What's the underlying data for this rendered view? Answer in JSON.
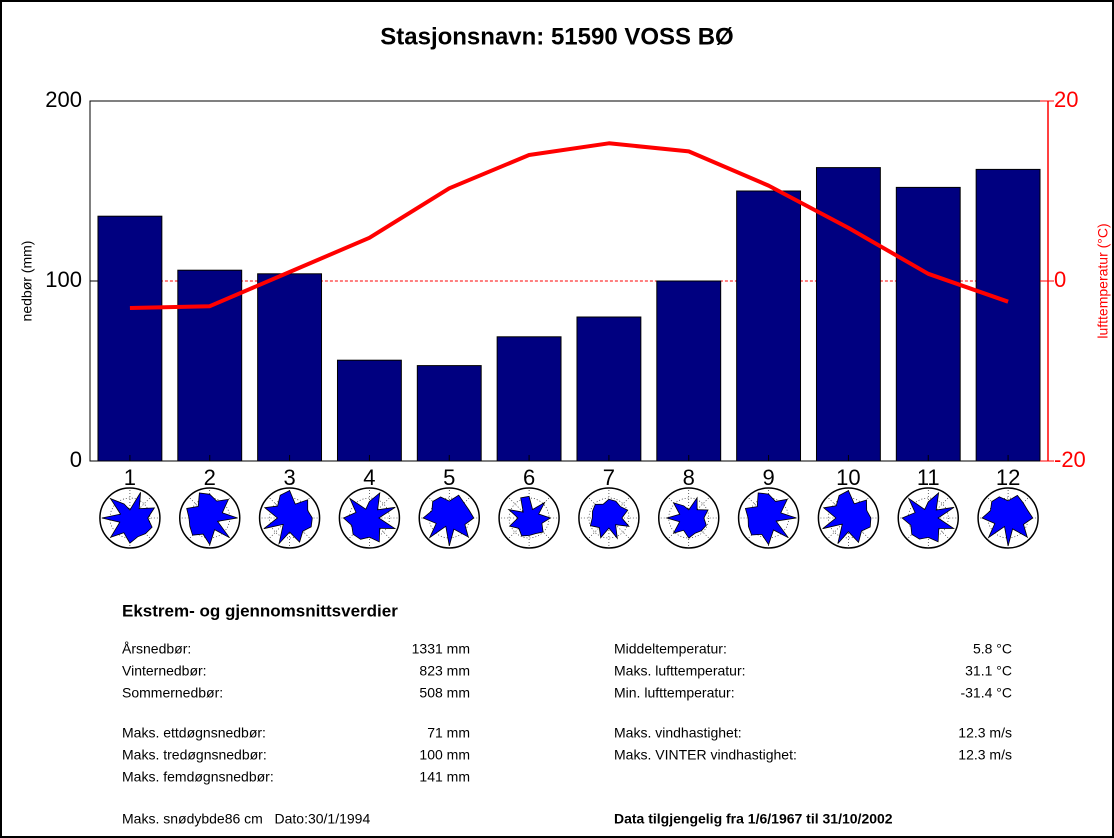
{
  "chart_data": {
    "type": "bar",
    "title": "Stasjonsnavn: 51590 VOSS BØ",
    "ylabel": "nedbør (mm)",
    "y2label": "lufttemperatur (°C)",
    "categories": [
      1,
      2,
      3,
      4,
      5,
      6,
      7,
      8,
      9,
      10,
      11,
      12
    ],
    "series": [
      {
        "name": "nedbør",
        "type": "bar",
        "color": "#000080",
        "values": [
          136,
          106,
          104,
          56,
          53,
          69,
          80,
          100,
          150,
          163,
          152,
          162
        ]
      },
      {
        "name": "lufttemperatur",
        "type": "line",
        "axis": "y2",
        "color": "#ff0000",
        "values": [
          -3.0,
          -2.8,
          1.0,
          4.8,
          10.3,
          14.0,
          15.3,
          14.4,
          10.6,
          5.9,
          0.8,
          -2.3
        ]
      }
    ],
    "ylim": [
      0,
      200
    ],
    "yticks": [
      0,
      100,
      200
    ],
    "y2lim": [
      -20,
      20
    ],
    "y2ticks": [
      -20,
      0,
      20
    ],
    "y2color": "#ff0000",
    "y2grid": true
  },
  "stats": {
    "title": "Ekstrem- og gjennomsnittsverdier",
    "left": [
      {
        "label": "Årsnedbør:",
        "value": "1331 mm"
      },
      {
        "label": "Vinternedbør:",
        "value": "823 mm"
      },
      {
        "label": "Sommernedbør:",
        "value": "508 mm"
      },
      {
        "label": "Maks. ettdøgnsnedbør:",
        "value": "71 mm"
      },
      {
        "label": "Maks. tredøgnsnedbør:",
        "value": "100 mm"
      },
      {
        "label": "Maks. femdøgnsnedbør:",
        "value": "141 mm"
      }
    ],
    "right": [
      {
        "label": "Middeltemperatur:",
        "value": "5.8 °C"
      },
      {
        "label": "Maks. lufttemperatur:",
        "value": "31.1 °C"
      },
      {
        "label": "Min. lufttemperatur:",
        "value": "-31.4 °C"
      },
      {
        "label": "Maks. vindhastighet:",
        "value": "12.3 m/s"
      },
      {
        "label": "Maks. VINTER vindhastighet:",
        "value": "12.3 m/s"
      }
    ],
    "footer_left": "Maks. snødybde86 cm   Dato:30/1/1994",
    "footer_right": "Data tilgjengelig fra 1/6/1967 til 31/10/2002"
  }
}
